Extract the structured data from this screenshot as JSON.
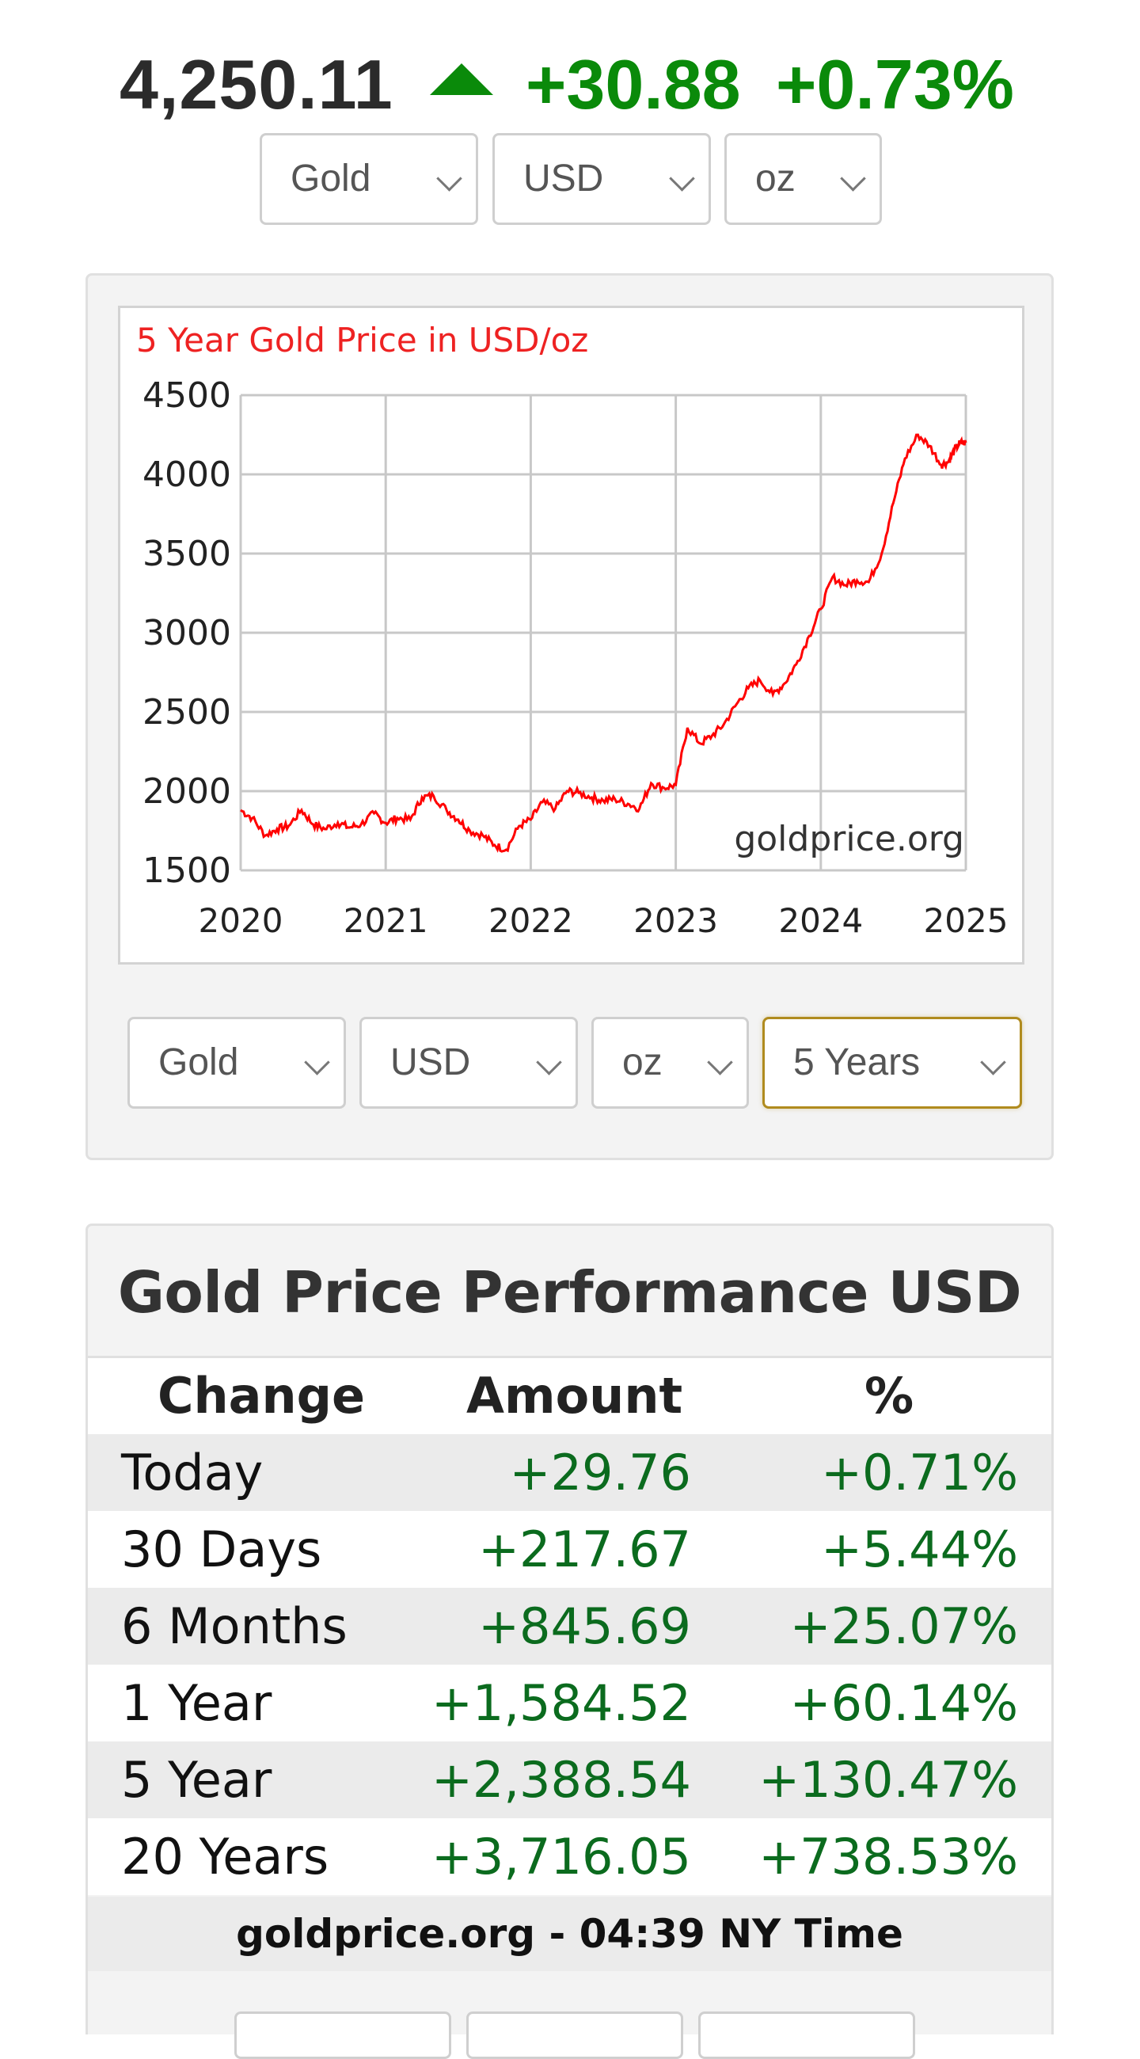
{
  "ticker": {
    "price": "4,250.11",
    "change": "+30.88",
    "change_pct": "+0.73%",
    "direction_icon": "triangle-up-icon",
    "up_color": "#0a8a0a"
  },
  "top_selectors": {
    "metal": "Gold",
    "currency": "USD",
    "unit": "oz"
  },
  "chart_selectors": {
    "metal": "Gold",
    "currency": "USD",
    "unit": "oz",
    "period": "5 Years"
  },
  "chart_data": {
    "type": "line",
    "title": "5 Year Gold Price in USD/oz",
    "watermark": "goldprice.org",
    "x_ticks": [
      "2020",
      "2021",
      "2022",
      "2023",
      "2024",
      "2025"
    ],
    "y_ticks": [
      "4500",
      "4000",
      "3500",
      "3000",
      "2500",
      "2000",
      "1500"
    ],
    "xlim": [
      2020,
      2025
    ],
    "ylim": [
      1500,
      4500
    ],
    "grid": true,
    "line_color": "#ff0000",
    "series": [
      {
        "x": [
          2020.0,
          2020.08,
          2020.17,
          2020.25,
          2020.33,
          2020.42,
          2020.5,
          2020.58,
          2020.67,
          2020.75,
          2020.83,
          2020.92,
          2021.0,
          2021.08,
          2021.17,
          2021.25,
          2021.33,
          2021.42,
          2021.5,
          2021.58,
          2021.67,
          2021.75,
          2021.83,
          2021.92,
          2022.0,
          2022.08,
          2022.17,
          2022.25,
          2022.33,
          2022.42,
          2022.5,
          2022.58,
          2022.67,
          2022.75,
          2022.83,
          2022.92,
          2023.0,
          2023.08,
          2023.17,
          2023.25,
          2023.33,
          2023.42,
          2023.5,
          2023.58,
          2023.67,
          2023.75,
          2023.83,
          2023.92,
          2024.0,
          2024.08,
          2024.17,
          2024.25,
          2024.33,
          2024.42,
          2024.5,
          2024.58,
          2024.67,
          2024.75,
          2024.83,
          2024.88,
          2024.92,
          2024.96,
          2025.0
        ],
        "y": [
          1880,
          1830,
          1720,
          1760,
          1780,
          1880,
          1790,
          1760,
          1800,
          1770,
          1790,
          1860,
          1800,
          1830,
          1820,
          1960,
          1970,
          1880,
          1820,
          1750,
          1720,
          1660,
          1630,
          1780,
          1820,
          1930,
          1890,
          2000,
          1990,
          1960,
          1940,
          1950,
          1920,
          1890,
          2050,
          2020,
          2040,
          2400,
          2300,
          2350,
          2420,
          2550,
          2650,
          2700,
          2610,
          2680,
          2800,
          2980,
          3150,
          3350,
          3300,
          3330,
          3320,
          3500,
          3820,
          4100,
          4250,
          4180,
          4060,
          4080,
          4150,
          4200,
          4200
        ]
      }
    ]
  },
  "performance": {
    "title": "Gold Price Performance USD",
    "headers": {
      "change": "Change",
      "amount": "Amount",
      "pct": "%"
    },
    "rows": [
      {
        "label": "Today",
        "amount": "+29.76",
        "pct": "+0.71%"
      },
      {
        "label": "30 Days",
        "amount": "+217.67",
        "pct": "+5.44%"
      },
      {
        "label": "6 Months",
        "amount": "+845.69",
        "pct": "+25.07%"
      },
      {
        "label": "1 Year",
        "amount": "+1,584.52",
        "pct": "+60.14%"
      },
      {
        "label": "5 Year",
        "amount": "+2,388.54",
        "pct": "+130.47%"
      },
      {
        "label": "20 Years",
        "amount": "+3,716.05",
        "pct": "+738.53%"
      }
    ],
    "footer": "goldprice.org - 04:39 NY Time",
    "positive_color": "#0b6b1e"
  }
}
